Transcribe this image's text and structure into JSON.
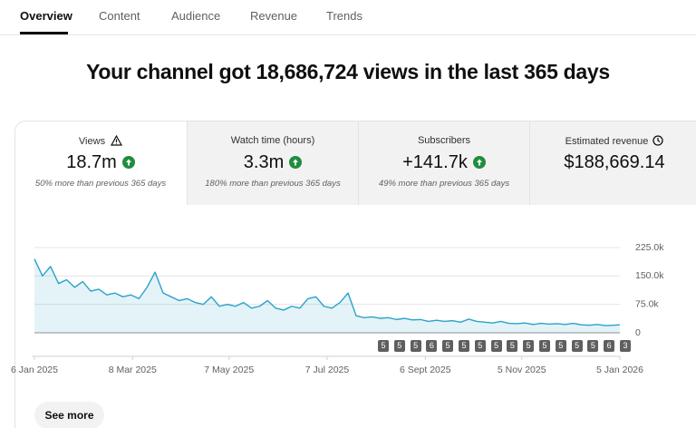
{
  "tabs": [
    "Overview",
    "Content",
    "Audience",
    "Revenue",
    "Trends"
  ],
  "headline": "Your channel got 18,686,724 views in the last 365 days",
  "metrics": [
    {
      "label": "Views",
      "value": "18.7m",
      "note": "50% more than previous 365 days"
    },
    {
      "label": "Watch time (hours)",
      "value": "3.3m",
      "note": "180% more than previous 365 days"
    },
    {
      "label": "Subscribers",
      "value": "+141.7k",
      "note": "49% more than previous 365 days"
    },
    {
      "label": "Estimated revenue",
      "value": "$188,669.14"
    }
  ],
  "chart_data": {
    "type": "line",
    "x": [
      0,
      5,
      10,
      15,
      20,
      25,
      30,
      35,
      40,
      45,
      50,
      55,
      60,
      65,
      70,
      75,
      80,
      85,
      90,
      95,
      100,
      105,
      110,
      115,
      120,
      125,
      130,
      135,
      140,
      145,
      150,
      155,
      160,
      165,
      170,
      175,
      180,
      185,
      190,
      195,
      200,
      205,
      210,
      215,
      220,
      225,
      230,
      235,
      240,
      245,
      250,
      255,
      260,
      265,
      270,
      275,
      280,
      285,
      290,
      295,
      300,
      305,
      310,
      315,
      320,
      325,
      330,
      335,
      340,
      345,
      350,
      355,
      360,
      364
    ],
    "xlim": [
      0,
      364
    ],
    "xticks": [
      {
        "value": 0,
        "label": "6 Jan 2025"
      },
      {
        "value": 61,
        "label": "8 Mar 2025"
      },
      {
        "value": 121,
        "label": "7 May 2025"
      },
      {
        "value": 182,
        "label": "7 Jul 2025"
      },
      {
        "value": 243,
        "label": "6 Sept 2025"
      },
      {
        "value": 303,
        "label": "5 Nov 2025"
      },
      {
        "value": 364,
        "label": "5 Jan 2026"
      }
    ],
    "series": [
      {
        "color": "#2ba3c9",
        "values": [
          195000,
          150000,
          175000,
          130000,
          140000,
          120000,
          135000,
          110000,
          115000,
          100000,
          105000,
          95000,
          100000,
          90000,
          120000,
          160000,
          105000,
          95000,
          85000,
          90000,
          80000,
          75000,
          95000,
          70000,
          75000,
          70000,
          80000,
          65000,
          70000,
          85000,
          65000,
          60000,
          70000,
          65000,
          90000,
          95000,
          70000,
          65000,
          80000,
          105000,
          45000,
          40000,
          42000,
          38000,
          40000,
          35000,
          38000,
          34000,
          35000,
          30000,
          33000,
          30000,
          32000,
          28000,
          36000,
          30000,
          28000,
          26000,
          30000,
          25000,
          24000,
          26000,
          22000,
          25000,
          23000,
          24000,
          22000,
          25000,
          21000,
          20000,
          22000,
          19000,
          20000,
          21000
        ]
      }
    ],
    "ylim": [
      0,
      225000
    ],
    "yticks": [
      0,
      {
        "value": 75000,
        "label": "75.0k"
      },
      {
        "value": 150000,
        "label": "150.0k"
      },
      {
        "value": 225000,
        "label": "225.0k"
      }
    ],
    "grid": true
  },
  "badges": [
    "5",
    "5",
    "5",
    "6",
    "5",
    "5",
    "5",
    "5",
    "5",
    "5",
    "5",
    "5",
    "5",
    "5",
    "6",
    "3"
  ],
  "button": "See more"
}
